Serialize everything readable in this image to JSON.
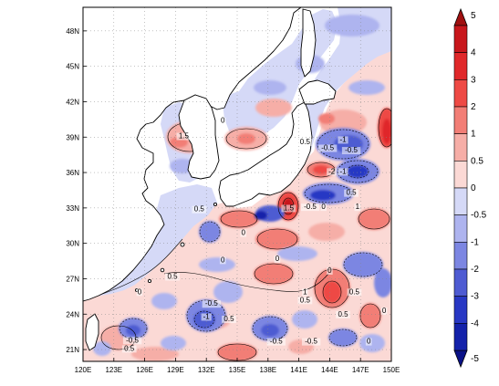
{
  "map": {
    "lon_ticks": [
      "120E",
      "123E",
      "126E",
      "129E",
      "132E",
      "135E",
      "138E",
      "141E",
      "144E",
      "147E",
      "150E"
    ],
    "lat_ticks": [
      "21N",
      "24N",
      "27N",
      "30N",
      "33N",
      "36N",
      "39N",
      "42N",
      "45N",
      "48N"
    ],
    "lon_range": [
      120,
      150
    ],
    "lat_range": [
      20,
      50
    ],
    "grid": "dotted"
  },
  "colorbar": {
    "levels": [
      "5",
      "4",
      "3",
      "2",
      "1",
      "0.5",
      "0",
      "-0.5",
      "-1",
      "-2",
      "-3",
      "-4",
      "-5"
    ],
    "colors": [
      "#c8171c",
      "#e0282a",
      "#ee4a45",
      "#f27e76",
      "#f6aea7",
      "#fbd9d5",
      "#d5d9f7",
      "#aeb4ef",
      "#7c86e2",
      "#4e5bd2",
      "#2838c4",
      "#1422aa"
    ],
    "top_arrow_color": "#a01010",
    "bottom_arrow_color": "#0a1288"
  },
  "contour_labels": [
    {
      "text": "1.5",
      "lon": 129.8,
      "lat": 38.9
    },
    {
      "text": "0",
      "lon": 133.6,
      "lat": 40.2
    },
    {
      "text": "0.5",
      "lon": 141.6,
      "lat": 38.4
    },
    {
      "text": "-0.5",
      "lon": 143.8,
      "lat": 37.9
    },
    {
      "text": "-1",
      "lon": 145.3,
      "lat": 38.6
    },
    {
      "text": "-0.5",
      "lon": 146.1,
      "lat": 37.7
    },
    {
      "text": "-2",
      "lon": 144.2,
      "lat": 35.9
    },
    {
      "text": "-1",
      "lon": 145.3,
      "lat": 35.9
    },
    {
      "text": "0.5",
      "lon": 146.1,
      "lat": 34.1
    },
    {
      "text": "0.5",
      "lon": 131.3,
      "lat": 32.7
    },
    {
      "text": "1.5",
      "lon": 140.0,
      "lat": 32.8
    },
    {
      "text": "-0.5",
      "lon": 142.1,
      "lat": 32.9
    },
    {
      "text": "0",
      "lon": 143.4,
      "lat": 32.9
    },
    {
      "text": "1",
      "lon": 146.7,
      "lat": 32.9
    },
    {
      "text": "0",
      "lon": 135.6,
      "lat": 30.7
    },
    {
      "text": "0",
      "lon": 138.9,
      "lat": 28.5
    },
    {
      "text": "0",
      "lon": 133.6,
      "lat": 28.4
    },
    {
      "text": "0.5",
      "lon": 128.7,
      "lat": 27.0
    },
    {
      "text": "0",
      "lon": 144.0,
      "lat": 27.5
    },
    {
      "text": "0",
      "lon": 125.5,
      "lat": 25.7
    },
    {
      "text": "1",
      "lon": 141.6,
      "lat": 25.7
    },
    {
      "text": "0.5",
      "lon": 141.6,
      "lat": 25.0
    },
    {
      "text": "0.5",
      "lon": 146.4,
      "lat": 25.7
    },
    {
      "text": "-0.5",
      "lon": 132.5,
      "lat": 24.7
    },
    {
      "text": "-1",
      "lon": 132.0,
      "lat": 23.6
    },
    {
      "text": "0.5",
      "lon": 134.2,
      "lat": 23.4
    },
    {
      "text": "0.5",
      "lon": 145.3,
      "lat": 23.8
    },
    {
      "text": "0",
      "lon": 149.3,
      "lat": 24.1
    },
    {
      "text": "-0.5",
      "lon": 124.8,
      "lat": 21.6
    },
    {
      "text": "0.5",
      "lon": 124.5,
      "lat": 20.9
    },
    {
      "text": "-0.5",
      "lon": 138.8,
      "lat": 21.5
    },
    {
      "text": "-0.5",
      "lon": 142.2,
      "lat": 21.5
    },
    {
      "text": "0",
      "lon": 147.8,
      "lat": 21.5
    }
  ]
}
